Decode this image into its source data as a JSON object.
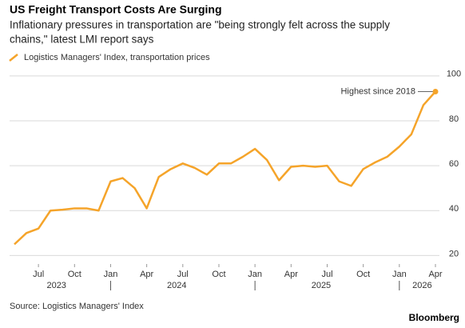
{
  "chart_data": {
    "type": "line",
    "title": "US Freight Transport Costs Are Surging",
    "subtitle": [
      "Inflationary pressures in transportation are \"being strongly felt across the supply",
      "chains,\" latest LMI report says"
    ],
    "source": "Source: Logistics Managers' Index",
    "brand": "Bloomberg",
    "annotation": "Highest since 2018",
    "x": [
      "2023-05",
      "2023-06",
      "2023-07",
      "2023-08",
      "2023-09",
      "2023-10",
      "2023-11",
      "2023-12",
      "2024-01",
      "2024-02",
      "2024-03",
      "2024-04",
      "2024-05",
      "2024-06",
      "2024-07",
      "2024-08",
      "2024-09",
      "2024-10",
      "2024-11",
      "2024-12",
      "2025-01",
      "2025-02",
      "2025-03",
      "2025-04",
      "2025-05",
      "2025-06",
      "2025-07",
      "2025-08",
      "2025-09",
      "2025-10",
      "2025-11",
      "2025-12",
      "2026-01",
      "2026-02",
      "2026-03",
      "2026-04"
    ],
    "series": [
      {
        "name": "Logistics Managers' Index, transportation prices",
        "color": "#f5a42a",
        "values": [
          25,
          30,
          32,
          40,
          40.4,
          41,
          41,
          40,
          53,
          54.5,
          50,
          41,
          55,
          58.5,
          61,
          59,
          56,
          61,
          61,
          64,
          67.5,
          62.5,
          53.5,
          59.5,
          60,
          59.5,
          60,
          53,
          51,
          58.5,
          61.5,
          64,
          68.5,
          74,
          87,
          93
        ]
      }
    ],
    "xlim": [
      "2023-05",
      "2026-04"
    ],
    "xticks": [
      {
        "value": "2023-07",
        "label": "Jul"
      },
      {
        "value": "2023-10",
        "label": "Oct"
      },
      {
        "value": "2024-01",
        "label": "Jan"
      },
      {
        "value": "2024-04",
        "label": "Apr"
      },
      {
        "value": "2024-07",
        "label": "Jul"
      },
      {
        "value": "2024-10",
        "label": "Oct"
      },
      {
        "value": "2025-01",
        "label": "Jan"
      },
      {
        "value": "2025-04",
        "label": "Apr"
      },
      {
        "value": "2025-07",
        "label": "Jul"
      },
      {
        "value": "2025-10",
        "label": "Oct"
      },
      {
        "value": "2026-01",
        "label": "Jan"
      },
      {
        "value": "2026-04",
        "label": "Apr"
      }
    ],
    "x_year_labels": [
      "2023",
      "2024",
      "2025",
      "2026"
    ],
    "ylim": [
      18,
      106
    ],
    "yticks": [
      20,
      40,
      60,
      80,
      100
    ],
    "grid": true
  }
}
